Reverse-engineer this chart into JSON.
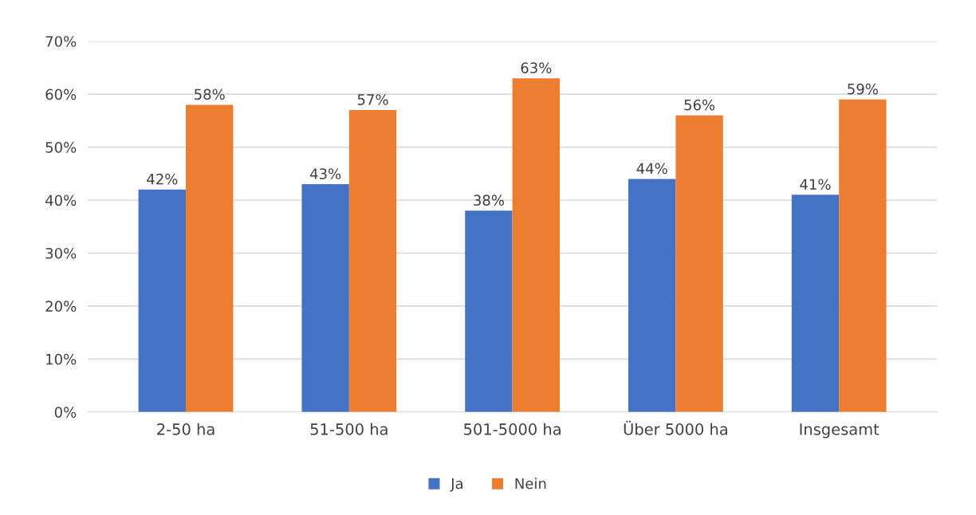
{
  "chart_data": {
    "type": "bar",
    "categories": [
      "2-50 ha",
      "51-500 ha",
      "501-5000 ha",
      "Über 5000 ha",
      "Insgesamt"
    ],
    "series": [
      {
        "name": "Ja",
        "color": "#4472c4",
        "values": [
          42,
          43,
          38,
          44,
          41
        ],
        "value_labels": [
          "42%",
          "43%",
          "38%",
          "44%",
          "41%"
        ]
      },
      {
        "name": "Nein",
        "color": "#ed7d31",
        "values": [
          58,
          57,
          63,
          56,
          59
        ],
        "value_labels": [
          "58%",
          "57%",
          "63%",
          "56%",
          "59%"
        ]
      }
    ],
    "ylim": [
      0,
      70
    ],
    "yticks": [
      {
        "value": 0,
        "label": "0%"
      },
      {
        "value": 10,
        "label": "10%"
      },
      {
        "value": 20,
        "label": "20%"
      },
      {
        "value": 30,
        "label": "30%"
      },
      {
        "value": 40,
        "label": "40%"
      },
      {
        "value": 50,
        "label": "50%"
      },
      {
        "value": 60,
        "label": "60%"
      },
      {
        "value": 70,
        "label": "70%"
      }
    ],
    "grid": "y",
    "legend": "bottom"
  }
}
